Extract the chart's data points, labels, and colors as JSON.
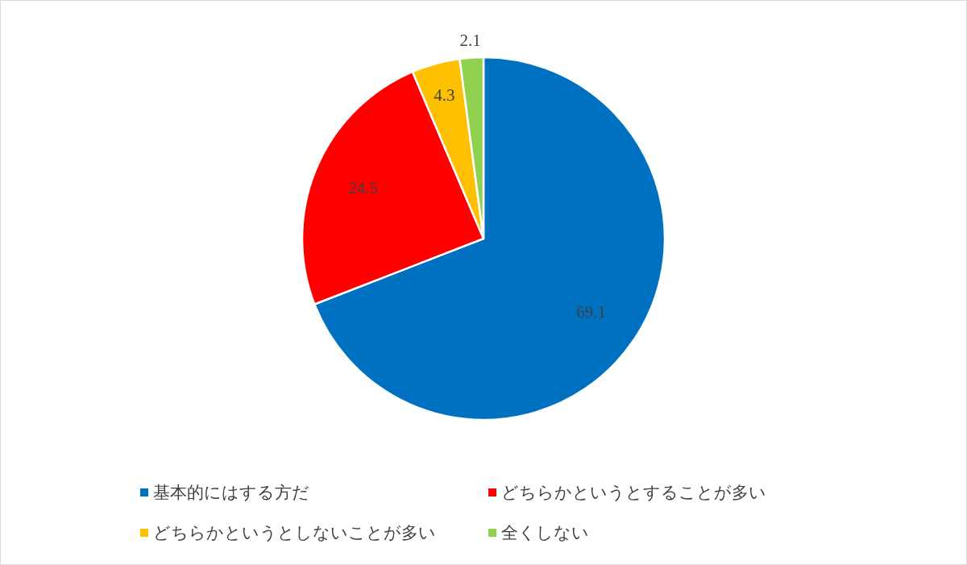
{
  "chart_data": {
    "type": "pie",
    "categories": [
      "基本的にはする方だ",
      "どちらかというとすることが多い",
      "どちらかというとしないことが多い",
      "全くしない"
    ],
    "values": [
      69.1,
      24.5,
      4.3,
      2.1
    ],
    "colors": [
      "#0070c0",
      "#ff0000",
      "#ffc000",
      "#92d050"
    ],
    "data_labels": true,
    "legend": "bottom"
  }
}
